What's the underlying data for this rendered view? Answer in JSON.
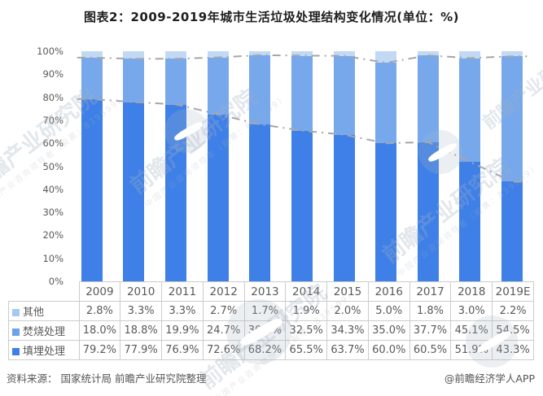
{
  "title": "图表2：2009-2019年城市生活垃圾处理结构变化情况(单位：%)",
  "chart_data": {
    "type": "bar",
    "stacked": true,
    "title": "图表2：2009-2019年城市生活垃圾处理结构变化情况(单位：%)",
    "categories": [
      "2009",
      "2010",
      "2011",
      "2012",
      "2013",
      "2014",
      "2015",
      "2016",
      "2017",
      "2018",
      "2019E"
    ],
    "series": [
      {
        "name": "其他",
        "color": "#c1d9f4",
        "values": [
          2.8,
          3.3,
          3.3,
          2.7,
          1.7,
          1.9,
          2.0,
          5.0,
          1.8,
          3.0,
          2.2
        ]
      },
      {
        "name": "焚烧处理",
        "color": "#77a8ec",
        "values": [
          18.0,
          18.8,
          19.9,
          24.7,
          30.1,
          32.5,
          34.3,
          35.0,
          37.7,
          45.1,
          54.5
        ]
      },
      {
        "name": "填埋处理",
        "color": "#3f80e8",
        "values": [
          79.2,
          77.9,
          76.9,
          72.6,
          68.2,
          65.5,
          63.7,
          60.0,
          60.5,
          51.9,
          43.3
        ]
      }
    ],
    "trend_lines": [
      {
        "name": "填埋+焚烧合计边界",
        "values": [
          97.2,
          96.7,
          96.7,
          97.3,
          98.3,
          98.1,
          98.0,
          95.0,
          98.2,
          97.0,
          97.8
        ]
      },
      {
        "name": "填埋处理边界",
        "values": [
          79.2,
          77.9,
          76.9,
          72.6,
          68.2,
          65.5,
          63.7,
          60.0,
          60.5,
          51.9,
          43.3
        ]
      }
    ],
    "line_color": "#a6a6a6",
    "y_ticks": [
      "100%",
      "90%",
      "80%",
      "70%",
      "60%",
      "50%",
      "40%",
      "30%",
      "20%",
      "10%",
      "0%"
    ],
    "ylim": [
      0,
      100
    ],
    "grid": false,
    "legend_position": "table-left"
  },
  "table": {
    "header": [
      "2009",
      "2010",
      "2011",
      "2012",
      "2013",
      "2014",
      "2015",
      "2016",
      "2017",
      "2018",
      "2019E"
    ],
    "rows": [
      {
        "label": "其他",
        "swatch": "#a5c9ef",
        "values": [
          "2.8%",
          "3.3%",
          "3.3%",
          "2.7%",
          "1.7%",
          "1.9%",
          "2.0%",
          "5.0%",
          "1.8%",
          "3.0%",
          "2.2%"
        ]
      },
      {
        "label": "焚烧处理",
        "swatch": "#6ba2ea",
        "values": [
          "18.0%",
          "18.8%",
          "19.9%",
          "24.7%",
          "30.1%",
          "32.5%",
          "34.3%",
          "35.0%",
          "37.7%",
          "45.1%",
          "54.5%"
        ]
      },
      {
        "label": "填埋处理",
        "swatch": "#3d7ee8",
        "values": [
          "79.2%",
          "77.9%",
          "76.9%",
          "72.6%",
          "68.2%",
          "65.5%",
          "63.7%",
          "60.0%",
          "60.5%",
          "51.9%",
          "43.3%"
        ]
      }
    ]
  },
  "watermark": {
    "text": "前瞻产业研究院",
    "subtext": "中国产业咨询领导者（股票：839599）"
  },
  "footer": {
    "source": "资料来源： 国家统计局 前瞻产业研究院整理",
    "attribution": "@前瞻经济学人APP"
  }
}
